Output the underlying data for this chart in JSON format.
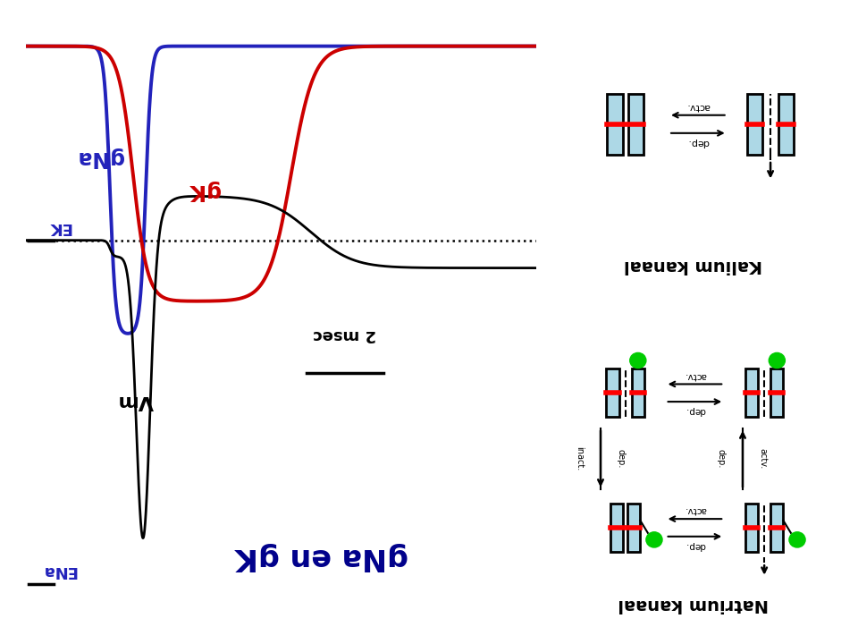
{
  "background_color": "#ffffff",
  "gNa_color": "#2222bb",
  "gK_color": "#cc0000",
  "Vm_color": "#000000",
  "EK_label_color": "#2222bb",
  "ENa_label_color": "#2222bb",
  "panel_bg": "#90ee90",
  "channel_color": "#add8e6",
  "channel_border": "#000000",
  "red_bar_color": "#ff0000",
  "green_ball_color": "#00cc00",
  "scale_bar_text": "2 msec",
  "Vm_label": "Vm",
  "gNa_label": "gNa",
  "gK_label": "gK",
  "EK_label": "EK",
  "ENa_label": "ENa",
  "bottom_label": "gNa en gK",
  "kalium_label": "Kalium kanaal",
  "natrium_label": "Natrium kanaal",
  "actv_label": "actv.",
  "dep_label": "dep.",
  "inact_label": "inact."
}
